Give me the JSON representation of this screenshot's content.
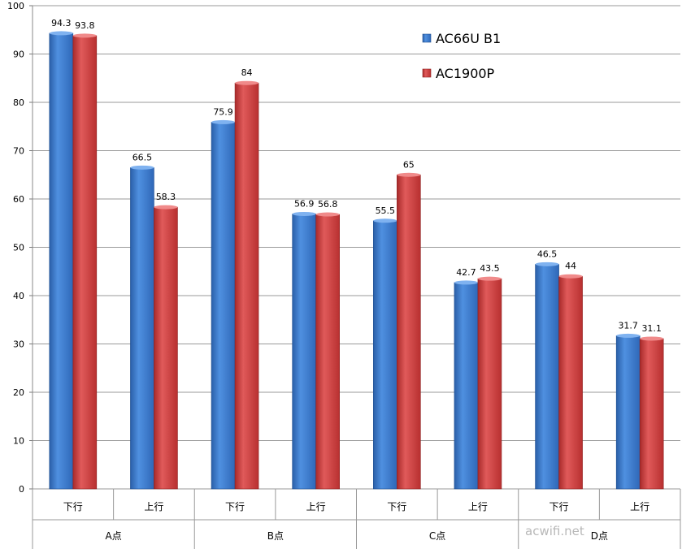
{
  "chart_data": {
    "type": "bar",
    "groups": [
      {
        "name": "A点",
        "categories": [
          "下行",
          "上行"
        ]
      },
      {
        "name": "B点",
        "categories": [
          "下行",
          "上行"
        ]
      },
      {
        "name": "C点",
        "categories": [
          "下行",
          "上行"
        ]
      },
      {
        "name": "D点",
        "categories": [
          "下行",
          "上行"
        ]
      }
    ],
    "categories": [
      "下行",
      "上行",
      "下行",
      "上行",
      "下行",
      "上行",
      "下行",
      "上行"
    ],
    "series": [
      {
        "name": "AC66U B1",
        "color": "#3a78c8",
        "values": [
          94.3,
          66.5,
          75.9,
          56.9,
          55.5,
          42.7,
          46.5,
          31.7
        ]
      },
      {
        "name": "AC1900P",
        "color": "#cc3a3a",
        "values": [
          93.8,
          58.3,
          84,
          56.8,
          65,
          43.5,
          44,
          31.1
        ]
      }
    ],
    "data_labels": [
      [
        "94.3",
        "66.5",
        "75.9",
        "56.9",
        "55.5",
        "42.7",
        "46.5",
        "31.7"
      ],
      [
        "93.8",
        "58.3",
        "84",
        "56.8",
        "65",
        "43.5",
        "44",
        "31.1"
      ]
    ],
    "yticks": [
      0,
      10,
      20,
      30,
      40,
      50,
      60,
      70,
      80,
      90,
      100
    ],
    "ylim": [
      0,
      100
    ],
    "grid": true,
    "legend_position": "top-right",
    "title": "",
    "xlabel": "",
    "ylabel": ""
  },
  "watermark": "acwifi.net"
}
